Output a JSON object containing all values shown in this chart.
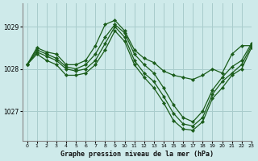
{
  "title": "Graphe pression niveau de la mer (hPa)",
  "bg_color": "#ceeaea",
  "grid_color": "#a8cccc",
  "line_color": "#1a5c1a",
  "marker_color": "#1a5c1a",
  "xlim": [
    -0.5,
    23
  ],
  "ylim": [
    1026.3,
    1029.55
  ],
  "yticks": [
    1027,
    1028,
    1029
  ],
  "xticks": [
    0,
    1,
    2,
    3,
    4,
    5,
    6,
    7,
    8,
    9,
    10,
    11,
    12,
    13,
    14,
    15,
    16,
    17,
    18,
    19,
    20,
    21,
    22,
    23
  ],
  "series": [
    [
      1028.1,
      1028.5,
      1028.4,
      1028.35,
      1028.1,
      1028.1,
      1028.2,
      1028.55,
      1029.05,
      1029.15,
      1028.9,
      1028.45,
      1028.25,
      1028.15,
      1027.95,
      1027.85,
      1027.8,
      1027.75,
      1027.85,
      1028.0,
      1027.9,
      1028.35,
      1028.55,
      1028.55
    ],
    [
      1028.1,
      1028.45,
      1028.35,
      1028.25,
      1028.05,
      1028.0,
      1028.1,
      1028.35,
      1028.75,
      1029.05,
      1028.85,
      1028.35,
      1028.1,
      1027.9,
      1027.55,
      1027.15,
      1026.85,
      1026.75,
      1027.0,
      1027.5,
      1027.8,
      1028.05,
      1028.2,
      1028.6
    ],
    [
      1028.1,
      1028.4,
      1028.3,
      1028.2,
      1028.0,
      1027.95,
      1028.0,
      1028.2,
      1028.6,
      1029.0,
      1028.75,
      1028.2,
      1027.9,
      1027.7,
      1027.35,
      1026.95,
      1026.7,
      1026.65,
      1026.85,
      1027.4,
      1027.7,
      1027.9,
      1028.1,
      1028.55
    ],
    [
      1028.1,
      1028.35,
      1028.2,
      1028.1,
      1027.85,
      1027.85,
      1027.9,
      1028.1,
      1028.45,
      1028.9,
      1028.65,
      1028.1,
      1027.8,
      1027.55,
      1027.2,
      1026.78,
      1026.58,
      1026.55,
      1026.75,
      1027.3,
      1027.55,
      1027.85,
      1028.0,
      1028.5
    ]
  ]
}
